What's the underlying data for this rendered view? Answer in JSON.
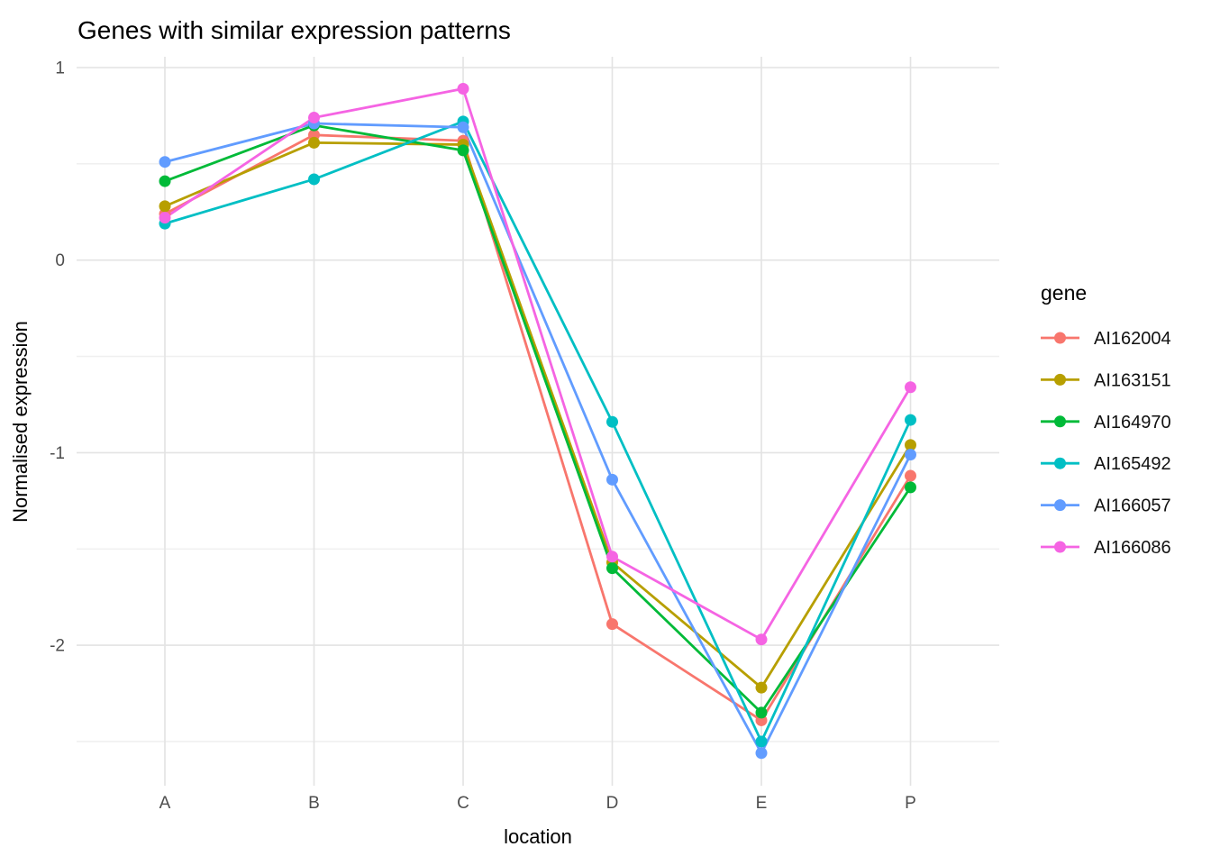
{
  "chart_data": {
    "type": "line",
    "title": "Genes with similar expression patterns",
    "xlabel": "location",
    "ylabel": "Normalised expression",
    "categories": [
      "A",
      "B",
      "C",
      "D",
      "E",
      "P"
    ],
    "yticks": [
      1,
      0,
      -1,
      -2
    ],
    "ytick_labels": [
      "1",
      "0",
      "-1",
      "-2"
    ],
    "ylim": [
      1.06,
      -2.73
    ],
    "grid": true,
    "legend_title": "gene",
    "legend_position": "right",
    "series": [
      {
        "name": "AI162004",
        "color": "#F8766D",
        "values": [
          0.24,
          0.65,
          0.62,
          -1.89,
          -2.39,
          -1.12
        ]
      },
      {
        "name": "AI163151",
        "color": "#B79F00",
        "values": [
          0.28,
          0.61,
          0.6,
          -1.57,
          -2.22,
          -0.96
        ]
      },
      {
        "name": "AI164970",
        "color": "#00BA38",
        "values": [
          0.41,
          0.7,
          0.57,
          -1.6,
          -2.35,
          -1.18
        ]
      },
      {
        "name": "AI165492",
        "color": "#00BFC4",
        "values": [
          0.19,
          0.42,
          0.72,
          -0.84,
          -2.5,
          -0.83
        ]
      },
      {
        "name": "AI166057",
        "color": "#619CFF",
        "values": [
          0.51,
          0.71,
          0.69,
          -1.14,
          -2.56,
          -1.01
        ]
      },
      {
        "name": "AI166086",
        "color": "#F564E3",
        "values": [
          0.22,
          0.74,
          0.89,
          -1.54,
          -1.97,
          -0.66
        ]
      }
    ],
    "colors": {
      "panel_background": "#FFFFFF",
      "grid_major": "#E3E3E3",
      "grid_minor": "#F0F0F0",
      "tick_label": "#4D4D4D",
      "text": "#000000"
    }
  }
}
